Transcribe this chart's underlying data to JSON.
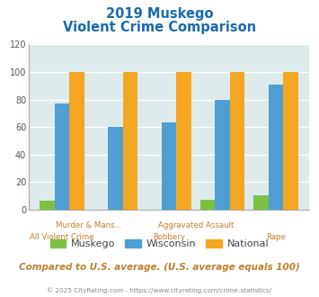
{
  "title_line1": "2019 Muskego",
  "title_line2": "Violent Crime Comparison",
  "categories": [
    "All Violent Crime",
    "Murder & Mans...",
    "Robbery",
    "Aggravated Assault",
    "Rape"
  ],
  "muskego": [
    6,
    0,
    0,
    7,
    10
  ],
  "wisconsin": [
    77,
    60,
    63,
    80,
    91
  ],
  "national": [
    100,
    100,
    100,
    100,
    100
  ],
  "colors": {
    "muskego": "#7bc242",
    "wisconsin": "#4f9fd4",
    "national": "#f5a623"
  },
  "ylim": [
    0,
    120
  ],
  "yticks": [
    0,
    20,
    40,
    60,
    80,
    100,
    120
  ],
  "bar_width": 0.2,
  "title_color": "#1a6aad",
  "axis_label_color": "#c08030",
  "legend_label_color": "#444444",
  "footer_text": "Compared to U.S. average. (U.S. average equals 100)",
  "footer_color": "#c08030",
  "copyright_text": "© 2025 CityRating.com - https://www.cityrating.com/crime-statistics/",
  "copyright_color": "#888888",
  "bg_color": "#ddeaec",
  "upper_labels": [
    "Murder & Mans...",
    "Aggravated Assault"
  ],
  "lower_labels": [
    "All Violent Crime",
    "Robbery",
    "Rape"
  ]
}
